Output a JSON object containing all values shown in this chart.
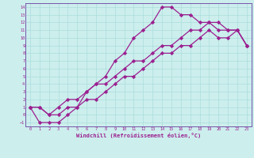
{
  "xlabel": "Windchill (Refroidissement éolien,°C)",
  "bg_color": "#cceeed",
  "line_color": "#9b2090",
  "grid_color": "#aadddb",
  "spine_color": "#7755aa",
  "xlim": [
    -0.5,
    23.5
  ],
  "ylim": [
    -1.5,
    14.5
  ],
  "xticks": [
    0,
    1,
    2,
    3,
    4,
    5,
    6,
    7,
    8,
    9,
    10,
    11,
    12,
    13,
    14,
    15,
    16,
    17,
    18,
    19,
    20,
    21,
    22,
    23
  ],
  "yticks": [
    -1,
    0,
    1,
    2,
    3,
    4,
    5,
    6,
    7,
    8,
    9,
    10,
    11,
    12,
    13,
    14
  ],
  "line1_x": [
    0,
    1,
    2,
    3,
    4,
    5,
    6,
    7,
    8,
    9,
    10,
    11,
    12,
    13,
    14,
    15,
    16,
    17,
    18,
    19,
    20,
    21,
    22,
    23
  ],
  "line1_y": [
    1,
    -1,
    -1,
    -1,
    0,
    1,
    3,
    4,
    5,
    7,
    8,
    10,
    11,
    12,
    14,
    14,
    13,
    13,
    12,
    12,
    12,
    11,
    11,
    9
  ],
  "line2_x": [
    0,
    1,
    2,
    3,
    4,
    5,
    6,
    7,
    8,
    9,
    10,
    11,
    12,
    13,
    14,
    15,
    16,
    17,
    18,
    19,
    20,
    21,
    22,
    23
  ],
  "line2_y": [
    1,
    1,
    0,
    1,
    2,
    2,
    3,
    4,
    4,
    5,
    6,
    7,
    7,
    8,
    9,
    9,
    10,
    11,
    11,
    12,
    11,
    11,
    11,
    9
  ],
  "line3_x": [
    0,
    1,
    2,
    3,
    4,
    5,
    6,
    7,
    8,
    9,
    10,
    11,
    12,
    13,
    14,
    15,
    16,
    17,
    18,
    19,
    20,
    21,
    22,
    23
  ],
  "line3_y": [
    1,
    1,
    0,
    0,
    1,
    1,
    2,
    2,
    3,
    4,
    5,
    5,
    6,
    7,
    8,
    8,
    9,
    9,
    10,
    11,
    10,
    10,
    11,
    9
  ]
}
